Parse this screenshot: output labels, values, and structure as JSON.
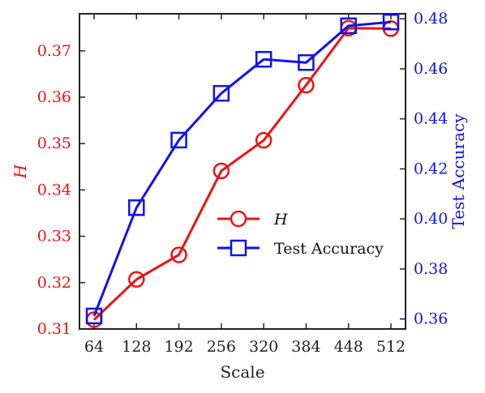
{
  "chart_data": {
    "type": "line",
    "xlabel": "Scale",
    "categories": [
      "64",
      "128",
      "192",
      "256",
      "320",
      "384",
      "448",
      "512"
    ],
    "y_left": {
      "label": "H",
      "ylim": [
        0.31,
        0.378
      ],
      "ticks": [
        "0.31",
        "0.32",
        "0.33",
        "0.34",
        "0.35",
        "0.36",
        "0.37"
      ],
      "tick_values": [
        0.31,
        0.32,
        0.33,
        0.34,
        0.35,
        0.36,
        0.37
      ],
      "color": "#ee1111"
    },
    "y_right": {
      "label": "Test Accuracy",
      "ylim": [
        0.356,
        0.482
      ],
      "ticks": [
        "0.36",
        "0.38",
        "0.40",
        "0.42",
        "0.44",
        "0.46",
        "0.48"
      ],
      "tick_values": [
        0.36,
        0.38,
        0.4,
        0.42,
        0.44,
        0.46,
        0.48
      ],
      "color": "#1111ee"
    },
    "series": [
      {
        "name": "H",
        "axis": "left",
        "marker": "circle",
        "color": "#ee1111",
        "values": [
          0.312,
          0.3207,
          0.326,
          0.3441,
          0.3507,
          0.3626,
          0.3749,
          0.3748
        ]
      },
      {
        "name": "Test Accuracy",
        "axis": "right",
        "marker": "square",
        "color": "#1111ee",
        "values": [
          0.3612,
          0.4045,
          0.4315,
          0.4502,
          0.4638,
          0.4625,
          0.4772,
          0.4787
        ]
      }
    ],
    "legend": "center-right",
    "grid": false
  }
}
